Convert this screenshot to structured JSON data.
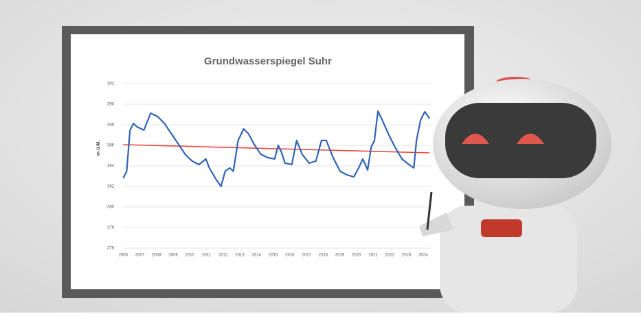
{
  "chart_data": {
    "type": "line",
    "title": "Grundwasserspiegel Suhr",
    "y_label": "m ü.M.",
    "x": [
      2006.0,
      2006.21,
      2006.41,
      2006.62,
      2006.83,
      2007.24,
      2007.65,
      2008.07,
      2008.48,
      2008.89,
      2009.31,
      2009.72,
      2010.13,
      2010.55,
      2010.96,
      2011.17,
      2011.58,
      2011.87,
      2012.12,
      2012.4,
      2012.61,
      2012.9,
      2013.23,
      2013.52,
      2013.85,
      2014.26,
      2014.68,
      2015.09,
      2015.3,
      2015.5,
      2015.71,
      2016.12,
      2016.41,
      2016.74,
      2017.16,
      2017.57,
      2017.9,
      2018.19,
      2018.6,
      2019.02,
      2019.43,
      2019.84,
      2020.13,
      2020.38,
      2020.67,
      2020.88,
      2021.08,
      2021.29,
      2021.54,
      2021.91,
      2022.32,
      2022.73,
      2023.15,
      2023.44,
      2023.6,
      2023.85,
      2024.1,
      2024.39
    ],
    "series": [
      {
        "color": "#2f63b5",
        "values": [
          382.8,
          383.47,
          387.47,
          388.13,
          387.8,
          387.47,
          389.13,
          388.8,
          388.13,
          387.13,
          386.13,
          385.13,
          384.47,
          384.13,
          384.67,
          383.8,
          382.67,
          382.0,
          383.47,
          383.8,
          383.47,
          386.47,
          387.6,
          387.13,
          386.13,
          385.13,
          384.8,
          384.67,
          386.0,
          385.33,
          384.27,
          384.13,
          386.47,
          385.13,
          384.27,
          384.47,
          386.47,
          386.47,
          384.8,
          383.47,
          383.13,
          382.93,
          383.8,
          384.67,
          383.6,
          385.8,
          386.47,
          389.33,
          388.47,
          387.13,
          385.8,
          384.67,
          384.13,
          383.8,
          386.47,
          388.47,
          389.27,
          388.6
        ]
      }
    ],
    "trend": {
      "color": "#e8463a",
      "x": [
        2006.0,
        2024.39
      ],
      "values": [
        386.07,
        385.27
      ]
    },
    "xlim": [
      2005.7,
      2024.5
    ],
    "xticks": [
      2006,
      2007,
      2008,
      2009,
      2010,
      2011,
      2012,
      2013,
      2014,
      2015,
      2016,
      2017,
      2018,
      2019,
      2020,
      2021,
      2022,
      2023,
      2024
    ],
    "ylim": [
      376,
      392
    ],
    "yticks": [
      376,
      378,
      380,
      382,
      384,
      386,
      388,
      390,
      392
    ],
    "grid": true
  }
}
